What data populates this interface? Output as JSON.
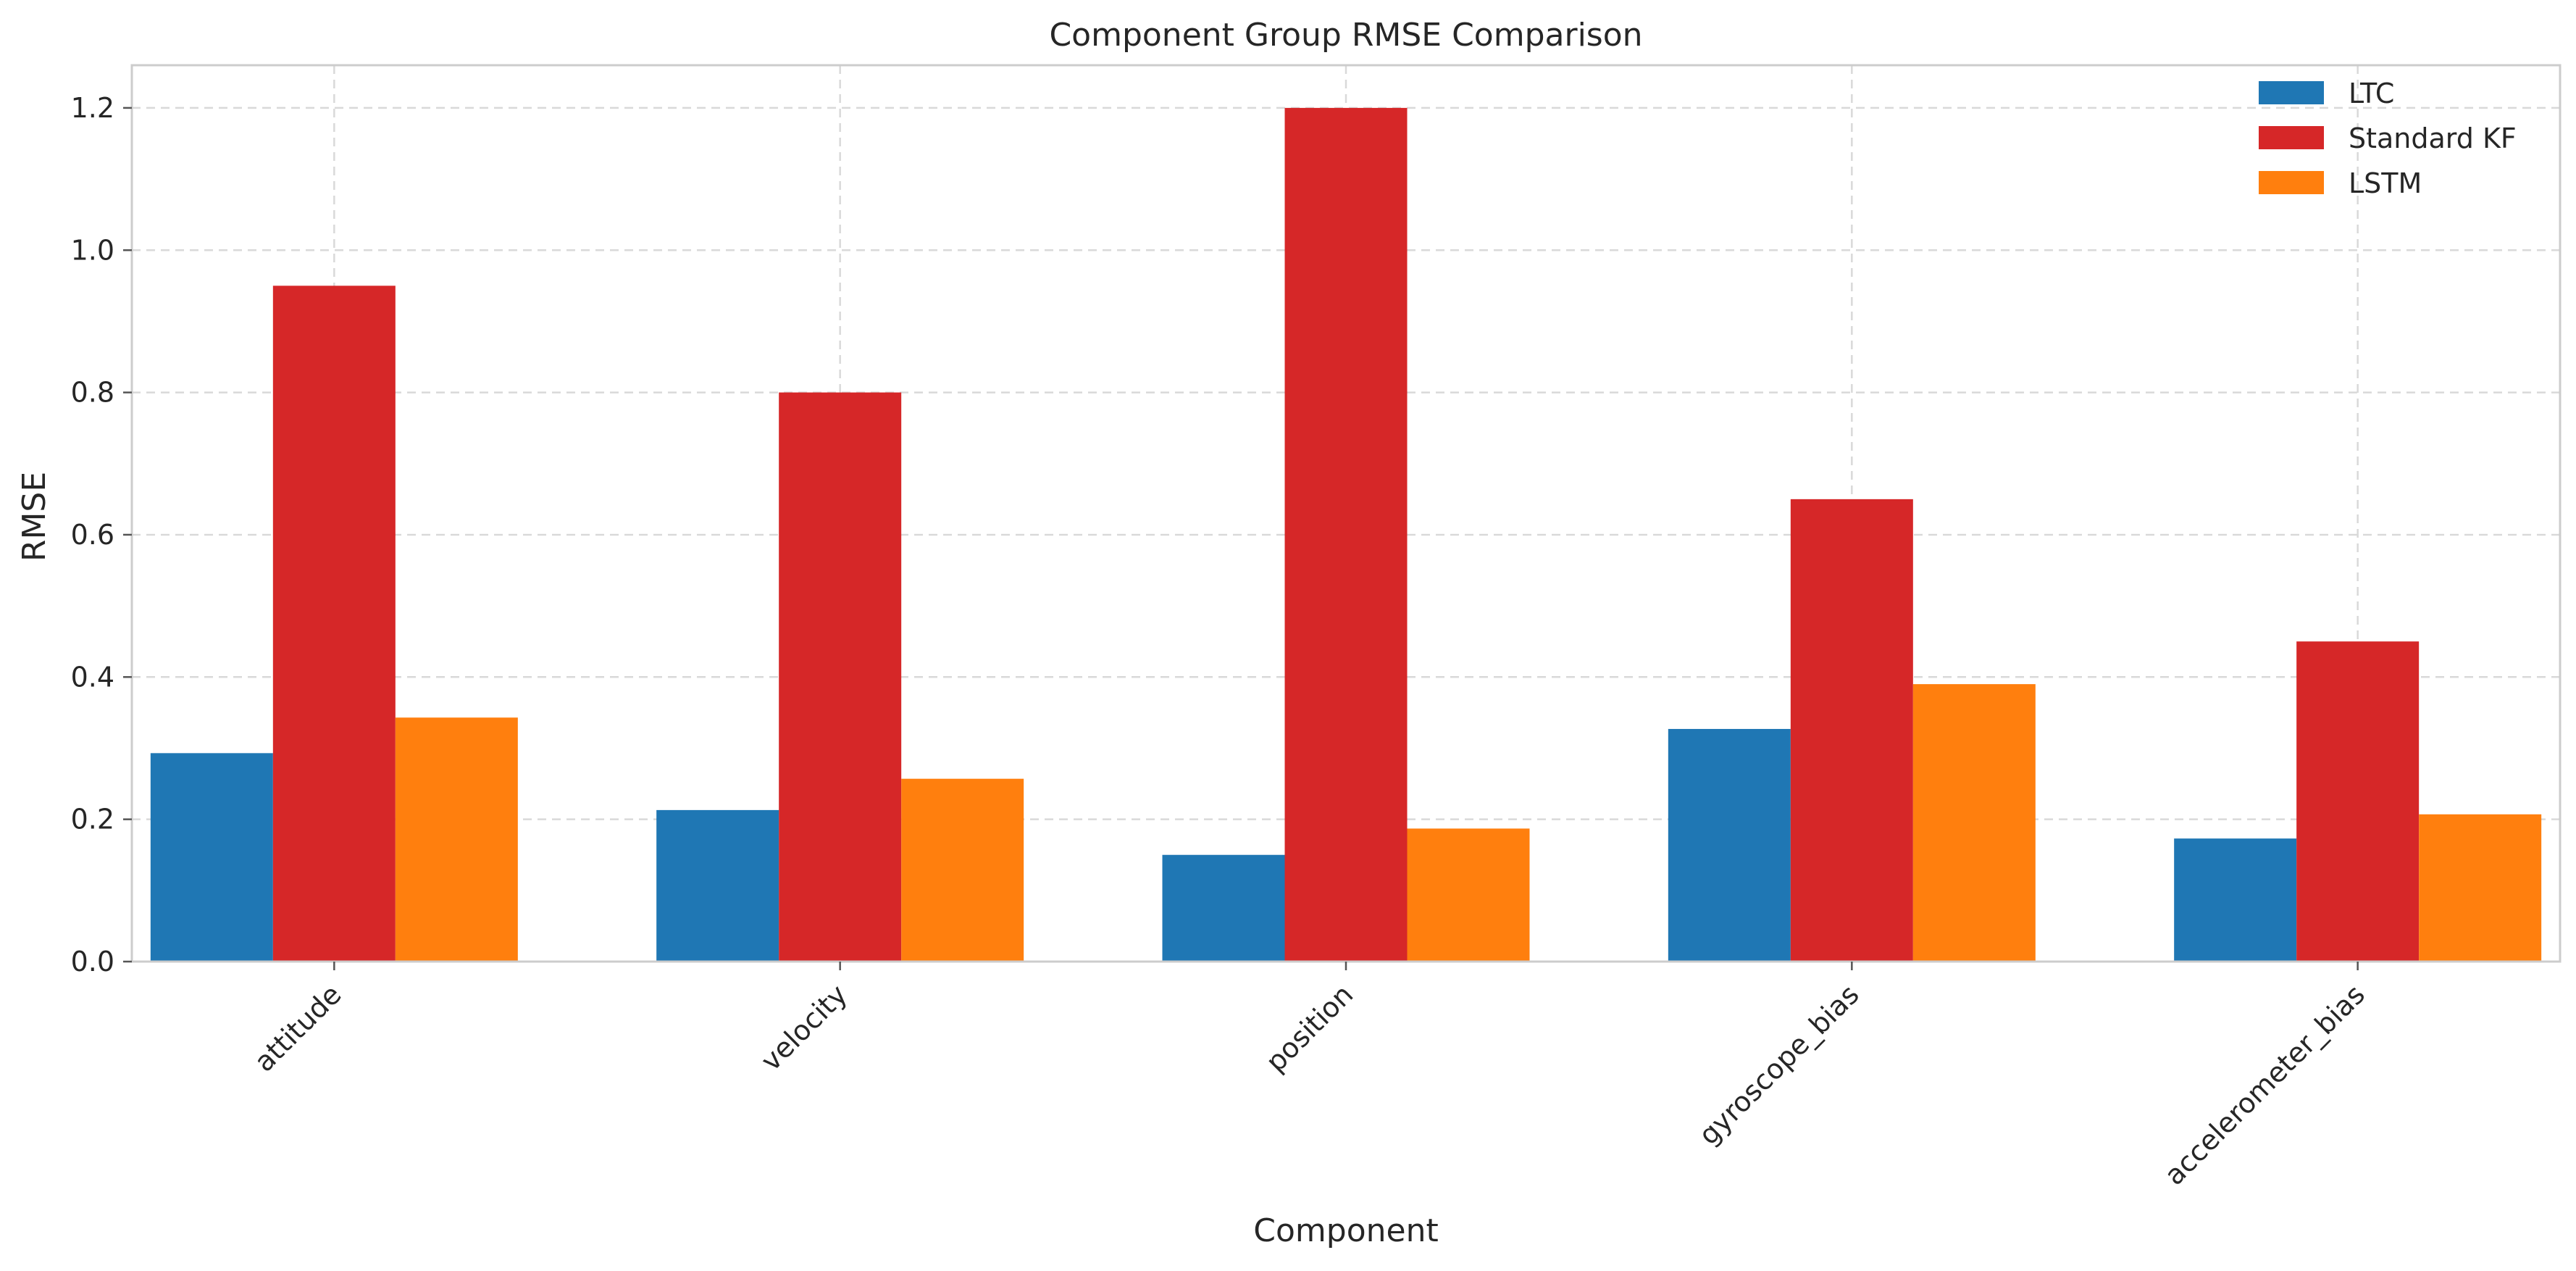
{
  "chart_data": {
    "type": "bar",
    "title": "Component Group RMSE Comparison",
    "xlabel": "Component",
    "ylabel": "RMSE",
    "categories": [
      "attitude",
      "velocity",
      "position",
      "gyroscope_bias",
      "accelerometer_bias"
    ],
    "series": [
      {
        "name": "LTC",
        "color": "#1f77b4",
        "values": [
          0.293,
          0.213,
          0.15,
          0.327,
          0.173
        ]
      },
      {
        "name": "Standard KF",
        "color": "#d62728",
        "values": [
          0.95,
          0.8,
          1.2,
          0.65,
          0.45
        ]
      },
      {
        "name": "LSTM",
        "color": "#ff7f0e",
        "values": [
          0.343,
          0.257,
          0.187,
          0.39,
          0.207
        ]
      }
    ],
    "yticks": [
      "0.0",
      "0.2",
      "0.4",
      "0.6",
      "0.8",
      "1.0",
      "1.2"
    ],
    "ylim": [
      0,
      1.26
    ],
    "grid": true,
    "legend_position": "top-right"
  }
}
